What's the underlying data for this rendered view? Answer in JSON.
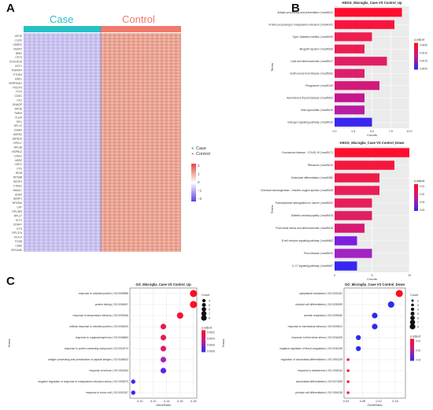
{
  "panel_labels": {
    "a": "A",
    "b": "B",
    "c": "C"
  },
  "heatmap": {
    "case_label": "Case",
    "control_label": "Control",
    "legend_case": "Case",
    "legend_control": "Control",
    "colorbar_ticks": [
      "2",
      "1",
      "0",
      "−1",
      "−2"
    ],
    "case_color": "#26c1c5",
    "control_color": "#f07a6c",
    "genes": [
      "APOE",
      "LYZ/D",
      "CEBPD",
      "CEBPZ",
      "BMI2",
      "CST3",
      "CHCHD10",
      "ASC1",
      "TNFAIP4",
      "OTUD4",
      "RBX1",
      "SERPINE1",
      "PDCPS",
      "ITCH",
      "CGM1",
      "CD1",
      "GNAQP",
      "APOE",
      "TMEM",
      "CLEN",
      "SPI1",
      "RPL31",
      "ICAM4",
      "ADRS2",
      "ZBTB10",
      "RPS17",
      "RPL38",
      "HSPB12",
      "CXBCI",
      "UBR2",
      "CHFO",
      "CTD",
      "IRGB",
      "RPS5B",
      "SEHP4",
      "CTBD2",
      "SMAD7",
      "UDR2",
      "SEMF1",
      "NFKBIA",
      "CAT",
      "RPL36S",
      "RPL27",
      "KLF2",
      "CDR47",
      "ETS",
      "RPL37A",
      "HLA-A",
      "FOSB",
      "CD86",
      "BPGAS6"
    ]
  },
  "chart_data": [
    {
      "type": "bar",
      "title": "KEGG_Microglia_Case VS Control_Up",
      "xlabel": "Counts",
      "ylabel": "Terms",
      "legend_title": "p.adjust",
      "legend_ticks": [
        "0.0005",
        "0.0010",
        "0.0015",
        "0.0020"
      ],
      "xlim": [
        0,
        10
      ],
      "xticks": [
        0.0,
        2.5,
        5.0,
        7.5,
        10.0
      ],
      "categories": [
        "Antigen processing and presentation | hsa04612",
        "Protein processing in endoplasmic reticulum | hsa04141",
        "Type I diabetes mellitus | hsa04940",
        "Allograft rejection | hsa05330",
        "Lipid and atherosclerosis | hsa05417",
        "Graft-versus-host disease | hsa05332",
        "Phagosome | hsa04145",
        "Autoimmune thyroid disease | hsa05320",
        "Viral myocarditis | hsa05416",
        "Estrogen signaling pathway | hsa04915"
      ],
      "values": [
        9,
        8,
        5,
        4,
        7,
        4,
        6,
        4,
        4,
        5
      ],
      "colors": [
        "#ff0d2d",
        "#f7143d",
        "#ee1f50",
        "#ec1d53",
        "#e11d63",
        "#db1f6c",
        "#d21a78",
        "#c41690",
        "#b91ca0",
        "#3b25f0"
      ]
    },
    {
      "type": "bar",
      "title": "KEGG_Microglia_Case VS Control_Down",
      "xlabel": "Counts",
      "ylabel": "Terms",
      "legend_title": "p.adjust",
      "legend_ticks": [
        "0.01",
        "0.02",
        "0.03",
        "0.04"
      ],
      "xlim": [
        0,
        10
      ],
      "xticks": [
        0,
        5,
        10
      ],
      "categories": [
        "Coronavirus disease - COVID-19 | hsa05171",
        "Ribosome | hsa03010",
        "Osteoclast differentiation | hsa04380",
        "Chemical carcinogenesis - reactive oxygen species | hsa05208",
        "Transcriptional misregulation in cancer | hsa05202",
        "Diabetic cardiomyopathy | hsa05415",
        "Fluid shear stress and atherosclerosis | hsa05418",
        "B cell receptor signaling pathway | hsa04662",
        "Prion disease | hsa05020",
        "IL-17 signaling pathway | hsa04657"
      ],
      "values": [
        10,
        8,
        6,
        6,
        5,
        5,
        4,
        3,
        5,
        3
      ],
      "colors": [
        "#ff0d2d",
        "#f5173e",
        "#ef1c4a",
        "#ea1e57",
        "#e51f5c",
        "#df1e64",
        "#d61a74",
        "#7b1ee0",
        "#a224c3",
        "#3725f2"
      ]
    },
    {
      "type": "scatter",
      "title": "GO_Microglia_Case VS Control_Up",
      "xlabel": "GeneRatio",
      "ylabel": "Terms",
      "size_legend_title": "Count",
      "size_legend": [
        4,
        5,
        6,
        7,
        8
      ],
      "color_legend_title": "p.adjust",
      "color_legend_ticks": [
        "0.0002",
        "0.0004",
        "0.0006",
        "0.0008"
      ],
      "xlim": [
        0.085,
        0.185
      ],
      "xticks": [
        0.1,
        0.12,
        0.14,
        0.16,
        0.18
      ],
      "categories": [
        "response to unfolded protein | GO:0006986",
        "protein folding | GO:0006457",
        "response to temperature stimulus | GO:0009266",
        "cellular response to unfolded protein | GO:0034620",
        "response to organophosphorus | GO:0046683",
        "response to purine-containing compound | GO:0014074",
        "antigen processing and presentation of peptide antigen | GO:0048002",
        "response to ketone | GO:1901654",
        "negative regulation of response to endoplasmic reticulum stress | GO:1903573",
        "response to tumor cell | GO:0002347"
      ],
      "x": [
        0.18,
        0.18,
        0.16,
        0.135,
        0.135,
        0.135,
        0.135,
        0.135,
        0.09,
        0.09
      ],
      "count": [
        8,
        8,
        7,
        6,
        6,
        6,
        6,
        6,
        4,
        4
      ],
      "colors": [
        "#ff0b20",
        "#ff0c22",
        "#f4123a",
        "#ec1850",
        "#e51c5c",
        "#dc1d6a",
        "#a325b8",
        "#5527ec",
        "#3a2af4",
        "#3327f8"
      ]
    },
    {
      "type": "scatter",
      "title": "GO_Microglia_Case VS Control_Down",
      "xlabel": "GeneRatio",
      "ylabel": "Terms",
      "size_legend_title": "Count",
      "size_legend": [
        2,
        3,
        4,
        5,
        6,
        7,
        8
      ],
      "color_legend_title": "p.adjust",
      "color_legend_ticks": [
        "0.01",
        "0.02",
        "0.03"
      ],
      "xlim": [
        0.035,
        0.185
      ],
      "xticks": [
        0.04,
        0.08,
        0.12,
        0.16
      ],
      "categories": [
        "cytoplasmic translation | GO:0002181",
        "myeloid cell differentiation | GO:0030099",
        "aerobic respiration | GO:0009060",
        "response to mechanical stimulus | GO:0009612",
        "response to fluid shear stress | GO:0034405",
        "negative regulation of blood coagulation | GO:0030195",
        "regulation of odontoblast differentiation | GO:1901329",
        "response to aldosterone | GO:1904044",
        "odontoblast differentiation | GO:0071895",
        "pericyte cell differentiation | GO:1904238"
      ],
      "x": [
        0.17,
        0.15,
        0.11,
        0.11,
        0.07,
        0.07,
        0.045,
        0.045,
        0.045,
        0.045
      ],
      "count": [
        8,
        7,
        6,
        6,
        5,
        5,
        2,
        2,
        2,
        2
      ],
      "colors": [
        "#ff0d1e",
        "#2a2cf0",
        "#2a2cf0",
        "#2a2cf0",
        "#2a2cf0",
        "#2a2cf0",
        "#ff1e3c",
        "#ff1e3c",
        "#ff1e3c",
        "#ff1e3c"
      ]
    }
  ]
}
